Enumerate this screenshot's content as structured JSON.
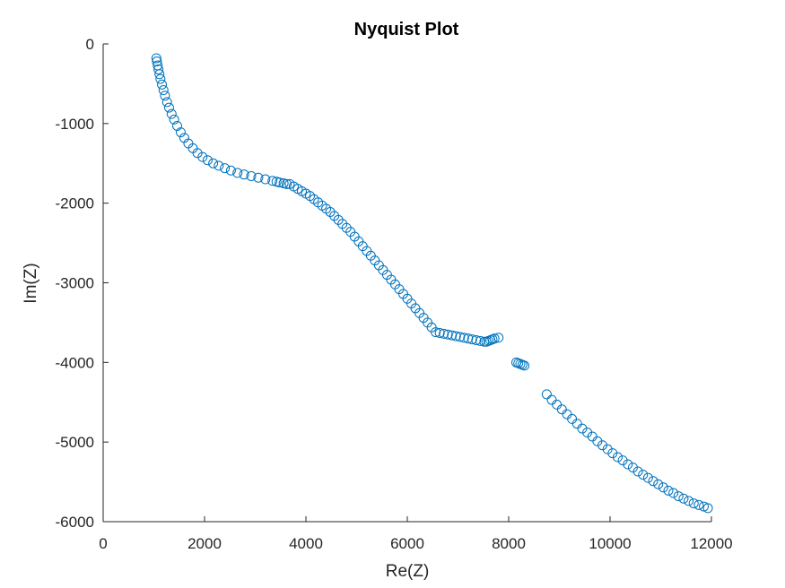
{
  "chart_data": {
    "type": "scatter",
    "title": "Nyquist Plot",
    "xlabel": "Re(Z)",
    "ylabel": "Im(Z)",
    "xlim": [
      0,
      12000
    ],
    "ylim": [
      -6000,
      0
    ],
    "xticks": [
      "0",
      "2000",
      "4000",
      "6000",
      "8000",
      "10000",
      "12000"
    ],
    "yticks": [
      "0",
      "-1000",
      "-2000",
      "-3000",
      "-4000",
      "-5000",
      "-6000"
    ],
    "grid": false,
    "marker": "open-circle",
    "color": "#0072bd",
    "x": [
      1050,
      1060,
      1075,
      1090,
      1110,
      1130,
      1160,
      1190,
      1220,
      1260,
      1300,
      1350,
      1400,
      1460,
      1530,
      1600,
      1680,
      1770,
      1860,
      1960,
      2060,
      2170,
      2280,
      2400,
      2520,
      2650,
      2780,
      2920,
      3060,
      3200,
      3340,
      3420,
      3480,
      3560,
      3620,
      3680,
      3760,
      3840,
      3920,
      4000,
      4080,
      4160,
      4240,
      4320,
      4400,
      4480,
      4560,
      4640,
      4720,
      4800,
      4880,
      4960,
      5040,
      5120,
      5200,
      5280,
      5360,
      5440,
      5520,
      5600,
      5680,
      5760,
      5840,
      5920,
      6000,
      6080,
      6160,
      6240,
      6320,
      6400,
      6480,
      6560,
      6640,
      6720,
      6800,
      6880,
      6960,
      7040,
      7120,
      7200,
      7280,
      7360,
      7440,
      7520,
      7560,
      7600,
      7640,
      7680,
      7720,
      7800,
      8150,
      8190,
      8230,
      8270,
      8310,
      8750,
      8850,
      8950,
      9050,
      9150,
      9250,
      9350,
      9450,
      9550,
      9650,
      9750,
      9850,
      9950,
      10050,
      10150,
      10250,
      10350,
      10450,
      10550,
      10650,
      10750,
      10850,
      10950,
      11050,
      11150,
      11250,
      11350,
      11450,
      11550,
      11650,
      11750,
      11850,
      11930
    ],
    "y": [
      -180,
      -220,
      -270,
      -320,
      -380,
      -440,
      -510,
      -580,
      -650,
      -730,
      -800,
      -880,
      -950,
      -1030,
      -1110,
      -1180,
      -1250,
      -1310,
      -1370,
      -1420,
      -1460,
      -1500,
      -1530,
      -1560,
      -1590,
      -1620,
      -1640,
      -1660,
      -1680,
      -1700,
      -1720,
      -1730,
      -1740,
      -1750,
      -1760,
      -1760,
      -1790,
      -1820,
      -1850,
      -1880,
      -1910,
      -1950,
      -1990,
      -2030,
      -2070,
      -2110,
      -2160,
      -2210,
      -2260,
      -2310,
      -2360,
      -2420,
      -2480,
      -2540,
      -2600,
      -2660,
      -2720,
      -2780,
      -2840,
      -2900,
      -2960,
      -3020,
      -3080,
      -3140,
      -3200,
      -3260,
      -3320,
      -3380,
      -3440,
      -3500,
      -3560,
      -3620,
      -3630,
      -3640,
      -3650,
      -3660,
      -3670,
      -3680,
      -3690,
      -3700,
      -3710,
      -3720,
      -3730,
      -3740,
      -3740,
      -3730,
      -3720,
      -3710,
      -3700,
      -3690,
      -4000,
      -4010,
      -4020,
      -4030,
      -4040,
      -4400,
      -4470,
      -4530,
      -4590,
      -4650,
      -4710,
      -4770,
      -4830,
      -4880,
      -4930,
      -4990,
      -5040,
      -5090,
      -5140,
      -5190,
      -5230,
      -5280,
      -5320,
      -5370,
      -5410,
      -5450,
      -5490,
      -5530,
      -5570,
      -5610,
      -5640,
      -5680,
      -5710,
      -5740,
      -5770,
      -5790,
      -5810,
      -5830
    ]
  }
}
